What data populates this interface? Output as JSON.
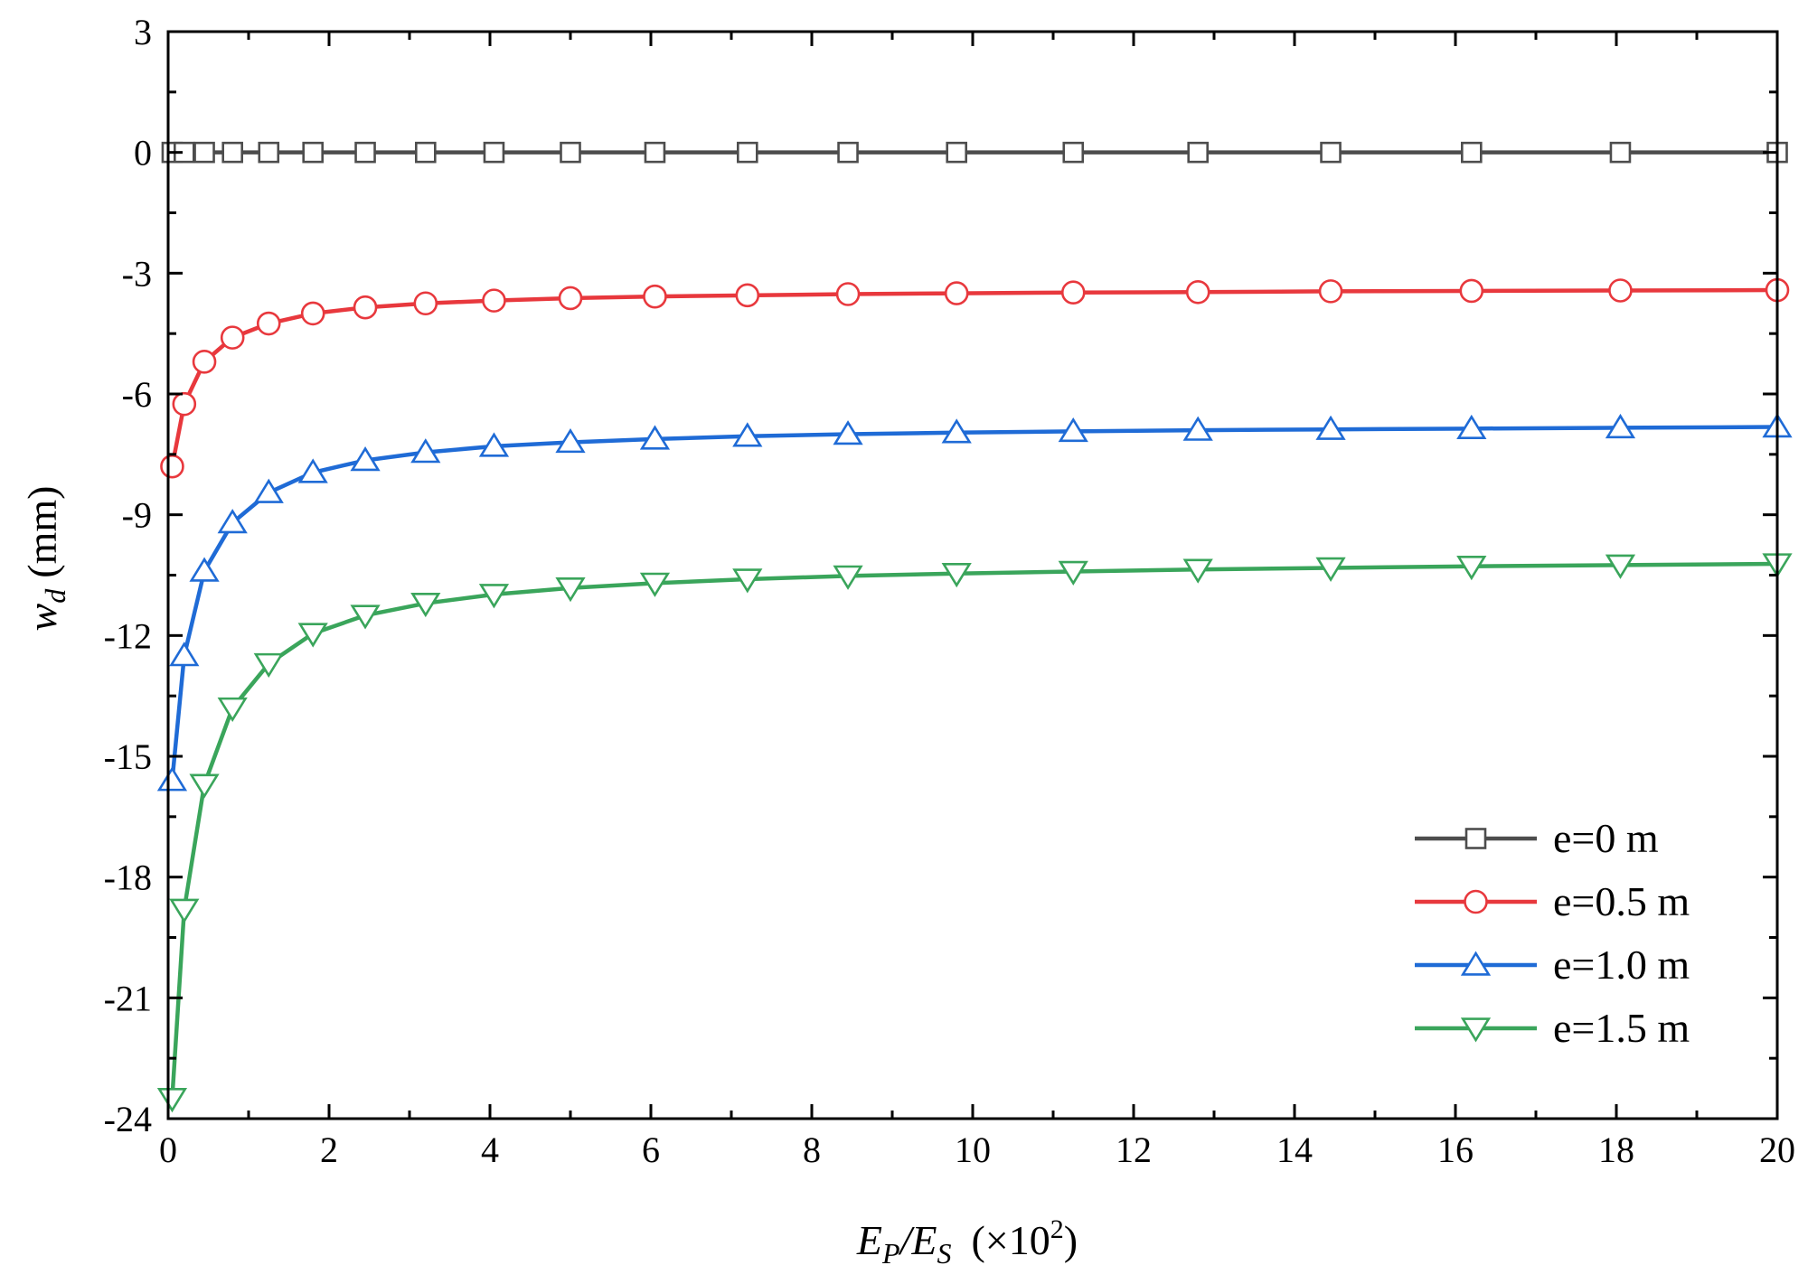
{
  "chart_data": {
    "type": "line",
    "title": "",
    "xlabel": {
      "main": "E",
      "sub1": "P",
      "slash": "/E",
      "sub2": "S",
      "unit_open": "(×10",
      "unit_exp": "2",
      "unit_close": ")"
    },
    "ylabel": {
      "main": "w",
      "sub": "d",
      "unit": "(mm)"
    },
    "xlim": [
      0,
      20
    ],
    "ylim": [
      -24,
      3
    ],
    "xticks": [
      0,
      2,
      4,
      6,
      8,
      10,
      12,
      14,
      16,
      18,
      20
    ],
    "yticks": [
      3,
      0,
      -3,
      -6,
      -9,
      -12,
      -15,
      -18,
      -21,
      -24
    ],
    "legend_position": "bottom-right",
    "x": [
      0.05,
      0.2,
      0.45,
      0.8,
      1.25,
      1.8,
      2.45,
      3.2,
      4.05,
      5.0,
      6.05,
      7.2,
      8.45,
      9.8,
      11.25,
      12.8,
      14.45,
      16.2,
      18.05,
      20.0
    ],
    "series": [
      {
        "name": "e=0 m",
        "color": "#4d4d4d",
        "marker": "square",
        "values": [
          0,
          0,
          0,
          0,
          0,
          0,
          0,
          0,
          0,
          0,
          0,
          0,
          0,
          0,
          0,
          0,
          0,
          0,
          0,
          0
        ]
      },
      {
        "name": "e=0.5 m",
        "color": "#e8383d",
        "marker": "circle",
        "values": [
          -7.8,
          -6.25,
          -5.2,
          -4.6,
          -4.25,
          -4.0,
          -3.85,
          -3.75,
          -3.68,
          -3.62,
          -3.58,
          -3.55,
          -3.52,
          -3.5,
          -3.48,
          -3.47,
          -3.45,
          -3.44,
          -3.43,
          -3.42
        ]
      },
      {
        "name": "e=1.0 m",
        "color": "#1f6bd6",
        "marker": "triangle-up",
        "values": [
          -15.6,
          -12.5,
          -10.4,
          -9.2,
          -8.45,
          -7.95,
          -7.65,
          -7.45,
          -7.3,
          -7.2,
          -7.12,
          -7.05,
          -7.0,
          -6.96,
          -6.93,
          -6.9,
          -6.88,
          -6.86,
          -6.84,
          -6.82
        ]
      },
      {
        "name": "e=1.5 m",
        "color": "#3aa55b",
        "marker": "triangle-down",
        "values": [
          -23.5,
          -18.8,
          -15.7,
          -13.8,
          -12.7,
          -11.95,
          -11.5,
          -11.2,
          -10.98,
          -10.82,
          -10.7,
          -10.6,
          -10.52,
          -10.46,
          -10.41,
          -10.36,
          -10.32,
          -10.28,
          -10.25,
          -10.22
        ]
      }
    ]
  }
}
